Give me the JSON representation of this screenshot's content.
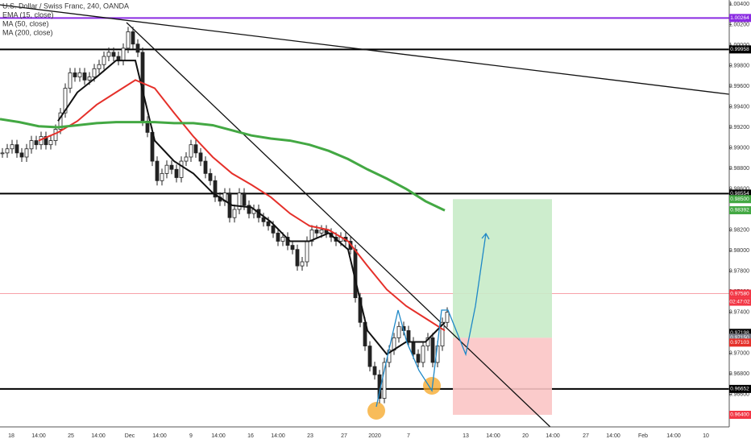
{
  "chart_data": {
    "type": "candlestick",
    "title": "U.S. Dollar / Swiss Franc, 240, OANDA",
    "values": [
      0.9895,
      0.9899,
      0.9903,
      0.9895,
      0.9891,
      0.9899,
      0.9907,
      0.9903,
      0.9911,
      0.9903,
      0.9907,
      0.9918,
      0.9934,
      0.9958,
      0.9973,
      0.9969,
      0.9973,
      0.9966,
      0.9969,
      0.9977,
      0.9981,
      0.9989,
      0.9993,
      0.9989,
      0.9985,
      0.9997,
      1.0013,
      1.0001,
      0.9993,
      0.9926,
      0.9915,
      0.9887,
      0.9868,
      0.9875,
      0.9883,
      0.9879,
      0.9871,
      0.9887,
      0.9891,
      0.9903,
      0.9895,
      0.9887,
      0.9875,
      0.9868,
      0.9852,
      0.9848,
      0.9856,
      0.9832,
      0.984,
      0.9856,
      0.9844,
      0.9836,
      0.984,
      0.9832,
      0.9828,
      0.9824,
      0.9817,
      0.9809,
      0.9813,
      0.9805,
      0.9801,
      0.9785,
      0.9789,
      0.9809,
      0.982,
      0.9817,
      0.982,
      0.9817,
      0.9813,
      0.9809,
      0.9813,
      0.9809,
      0.9801,
      0.9754,
      0.973,
      0.9707,
      0.9687,
      0.9679,
      0.9656,
      0.9691,
      0.9703,
      0.9715,
      0.9726,
      0.9722,
      0.9711,
      0.9699,
      0.9691,
      0.9707,
      0.9715,
      0.9691,
      0.9707,
      0.973,
      0.974
    ],
    "up_color": "#ffffff",
    "down_color": "#222222",
    "series": [
      {
        "name": "EMA (15, close)",
        "color": "#111111",
        "values": [
          null,
          null,
          null,
          0.9926,
          0.9954,
          0.9969,
          0.9985,
          0.9985,
          0.9907,
          0.9887,
          0.9875,
          0.9856,
          0.9844,
          0.9842,
          0.9828,
          0.9809,
          0.9809,
          0.9817,
          0.9801,
          0.9722,
          0.9699,
          0.9711,
          0.9711,
          0.973
        ]
      },
      {
        "name": "MA (50, close)",
        "color": "#e5302a",
        "values": [
          null,
          null,
          0.9907,
          0.9915,
          0.9926,
          0.9942,
          0.9954,
          0.9966,
          0.9958,
          0.9934,
          0.9911,
          0.9891,
          0.9875,
          0.9864,
          0.9852,
          0.9836,
          0.9824,
          0.982,
          0.9809,
          0.9785,
          0.9762,
          0.9746,
          0.9734,
          0.9722
        ]
      },
      {
        "name": "MA (200, close)",
        "color": "#43a843",
        "values": [
          0.9928,
          0.9925,
          0.9921,
          0.992,
          0.9922,
          0.9924,
          0.9925,
          0.9925,
          0.9925,
          0.9924,
          0.9924,
          0.9922,
          0.9917,
          0.9912,
          0.9909,
          0.9907,
          0.9903,
          0.9897,
          0.9889,
          0.9879,
          0.987,
          0.986,
          0.9848,
          0.9839
        ]
      }
    ],
    "x_labels": [
      "18",
      "14:00",
      "25",
      "14:00",
      "Dec",
      "14:00",
      "9",
      "14:00",
      "16",
      "14:00",
      "23",
      "27",
      "2020",
      "7",
      "13",
      "14:00",
      "20",
      "14:00",
      "27",
      "14:00",
      "Feb",
      "14:00",
      "10"
    ],
    "ylim": [
      0.964,
      1.004
    ],
    "yticks": [
      {
        "value": 1.004,
        "label": "1.00400"
      },
      {
        "value": 1.002,
        "label": "1.00200"
      },
      {
        "value": 1.0,
        "label": "1.00000"
      },
      {
        "value": 0.998,
        "label": "0.99800"
      },
      {
        "value": 0.996,
        "label": "0.99600"
      },
      {
        "value": 0.994,
        "label": "0.99400"
      },
      {
        "value": 0.992,
        "label": "0.99200"
      },
      {
        "value": 0.99,
        "label": "0.99000"
      },
      {
        "value": 0.988,
        "label": "0.98800"
      },
      {
        "value": 0.986,
        "label": "0.98600"
      },
      {
        "value": 0.984,
        "label": "0.98400"
      },
      {
        "value": 0.982,
        "label": "0.98200"
      },
      {
        "value": 0.98,
        "label": "0.98000"
      },
      {
        "value": 0.978,
        "label": "0.97800"
      },
      {
        "value": 0.976,
        "label": "0.97600"
      },
      {
        "value": 0.974,
        "label": "0.97400"
      },
      {
        "value": 0.972,
        "label": "0.97200"
      },
      {
        "value": 0.97,
        "label": "0.97000"
      },
      {
        "value": 0.968,
        "label": "0.96800"
      },
      {
        "value": 0.966,
        "label": "0.96600"
      },
      {
        "value": 0.964,
        "label": "0.96400"
      }
    ],
    "price_labels": [
      {
        "value": 1.00264,
        "label": "1.00264",
        "color": "#8a2be2",
        "line": true
      },
      {
        "value": 0.99958,
        "label": "0.99958",
        "color": "#000000",
        "line": true
      },
      {
        "value": 0.98554,
        "label": "0.98554",
        "color": "#000000",
        "line": true
      },
      {
        "value": 0.985,
        "label": "0.98500",
        "color": "#43a843",
        "line": false
      },
      {
        "value": 0.98392,
        "label": "0.98392",
        "color": "#43a843",
        "line": false
      },
      {
        "value": 0.9758,
        "label": "0.97580",
        "color": "#f23645",
        "line": true
      },
      {
        "value": 0.97198,
        "label": "0.97198",
        "color": "#000000",
        "line": false
      },
      {
        "value": 0.9715,
        "label": "0.97150",
        "color": "#787b86",
        "line": false
      },
      {
        "value": 0.97103,
        "label": "0.97103",
        "color": "#e5302a",
        "line": false
      },
      {
        "value": 0.96652,
        "label": "0.96652",
        "color": "#000000",
        "line": true
      },
      {
        "value": 0.964,
        "label": "0.96400",
        "color": "#f23645",
        "line": false
      }
    ],
    "countdown": "02:47:02"
  }
}
